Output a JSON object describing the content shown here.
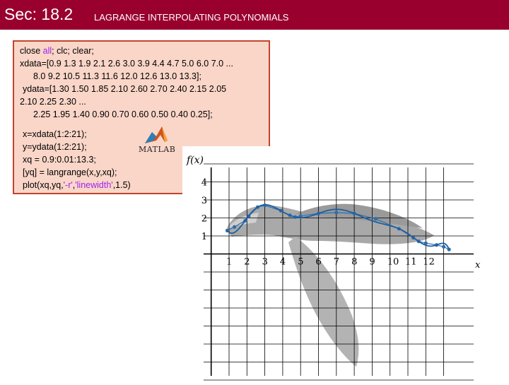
{
  "header": {
    "section": "Sec: 18.2",
    "subtitle": "LAGRANGE INTERPOLATING POLYNOMIALS"
  },
  "code": {
    "line1_close": "close ",
    "line1_all": "all",
    "line1_rest": "; clc; clear;",
    "line2": "xdata=[0.9 1.3 1.9 2.1 2.6 3.0 3.9 4.4 4.7 5.0 6.0 7.0 ...",
    "line3": "8.0 9.2 10.5 11.3 11.6 12.0 12.6 13.0 13.3];",
    "line4": "ydata=[1.30 1.50 1.85 2.10 2.60 2.70 2.40 2.15 2.05",
    "line5": "2.10 2.25 2.30 ...",
    "line6": "2.25 1.95 1.40 0.90 0.70 0.60 0.50 0.40 0.25];",
    "line7": "x=xdata(1:2:21);",
    "line8": "y=ydata(1:2:21);",
    "line9": "xq = 0.9:0.01:13.3;",
    "line10": "[yq] = langrange(x,y,xq);",
    "line11_pre": "plot(xq,yq,",
    "line11_s1": "'-r'",
    "line11_mid": ",",
    "line11_s2": "'linewidth'",
    "line11_post": ",1.5)"
  },
  "logo": {
    "text": "MATLAB"
  },
  "chart_data": {
    "type": "line",
    "ylabel": "f(x)",
    "xlabel": "x",
    "x_ticks": [
      "1",
      "2",
      "3",
      "4",
      "5",
      "6",
      "7",
      "8",
      "9",
      "10",
      "11",
      "12"
    ],
    "y_ticks": [
      "1",
      "2",
      "3",
      "4"
    ],
    "xlim": [
      0.3,
      13.8
    ],
    "ylim": [
      -8,
      5
    ],
    "series": [
      {
        "x": [
          0.9,
          1.3,
          1.9,
          2.1,
          2.6,
          3.0,
          3.9,
          4.4,
          4.7,
          5.0,
          6.0,
          7.0,
          8.0,
          9.2,
          10.5,
          11.3,
          11.6,
          12.0,
          12.6,
          13.0,
          13.3
        ],
        "y": [
          1.3,
          1.5,
          1.85,
          2.1,
          2.6,
          2.7,
          2.4,
          2.15,
          2.05,
          2.1,
          2.25,
          2.3,
          2.25,
          1.95,
          1.4,
          0.9,
          0.7,
          0.6,
          0.5,
          0.4,
          0.25
        ]
      },
      {
        "x": [
          0.9,
          1.9,
          2.6,
          3.9,
          4.7,
          6.0,
          8.0,
          10.5,
          11.6,
          12.6,
          13.3
        ],
        "y": [
          1.3,
          1.85,
          2.6,
          2.4,
          2.05,
          2.25,
          2.25,
          1.4,
          0.7,
          0.5,
          0.25
        ]
      }
    ],
    "colors": {
      "interp": "#1f5f9e",
      "points": "#2f6fae",
      "bird": "#a9a9a9",
      "grid": "#000000"
    }
  }
}
